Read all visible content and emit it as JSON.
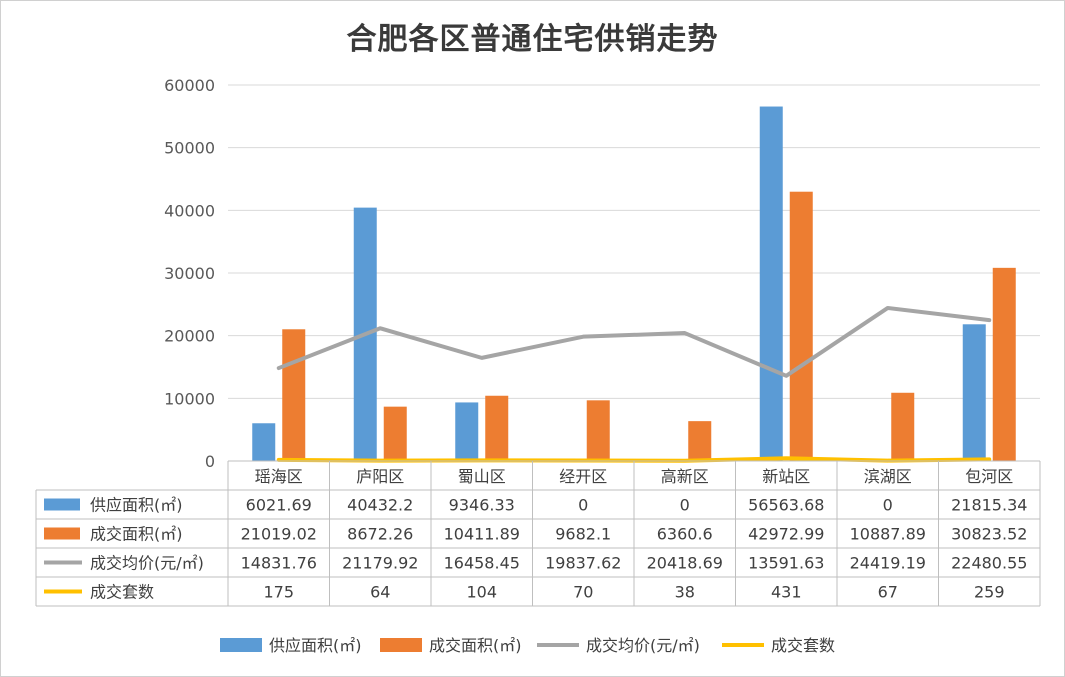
{
  "chart_data": {
    "type": "bar",
    "title": "合肥各区普通住宅供销走势",
    "categories": [
      "瑶海区",
      "庐阳区",
      "蜀山区",
      "经开区",
      "高新区",
      "新站区",
      "滨湖区",
      "包河区"
    ],
    "ylim": [
      0,
      60000
    ],
    "yticks": [
      0,
      10000,
      20000,
      30000,
      40000,
      50000,
      60000
    ],
    "grid": true,
    "legend_position": "bottom",
    "data_table": true,
    "series": [
      {
        "name": "供应面积(㎡)",
        "type": "bar",
        "color": "#5b9bd5",
        "values": [
          6021.69,
          40432.2,
          9346.33,
          0,
          0,
          56563.68,
          0,
          21815.34
        ],
        "display": [
          "6021.69",
          "40432.2",
          "9346.33",
          "0",
          "0",
          "56563.68",
          "0",
          "21815.34"
        ]
      },
      {
        "name": "成交面积(㎡)",
        "type": "bar",
        "color": "#ed7d31",
        "values": [
          21019.02,
          8672.26,
          10411.89,
          9682.1,
          6360.6,
          42972.99,
          10887.89,
          30823.52
        ],
        "display": [
          "21019.02",
          "8672.26",
          "10411.89",
          "9682.1",
          "6360.6",
          "42972.99",
          "10887.89",
          "30823.52"
        ]
      },
      {
        "name": "成交均价(元/㎡)",
        "type": "line",
        "color": "#a5a5a5",
        "values": [
          14831.76,
          21179.92,
          16458.45,
          19837.62,
          20418.69,
          13591.63,
          24419.19,
          22480.55
        ],
        "display": [
          "14831.76",
          "21179.92",
          "16458.45",
          "19837.62",
          "20418.69",
          "13591.63",
          "24419.19",
          "22480.55"
        ]
      },
      {
        "name": "成交套数",
        "type": "line",
        "color": "#ffc000",
        "values": [
          175,
          64,
          104,
          70,
          38,
          431,
          67,
          259
        ],
        "display": [
          "175",
          "64",
          "104",
          "70",
          "38",
          "431",
          "67",
          "259"
        ]
      }
    ]
  }
}
